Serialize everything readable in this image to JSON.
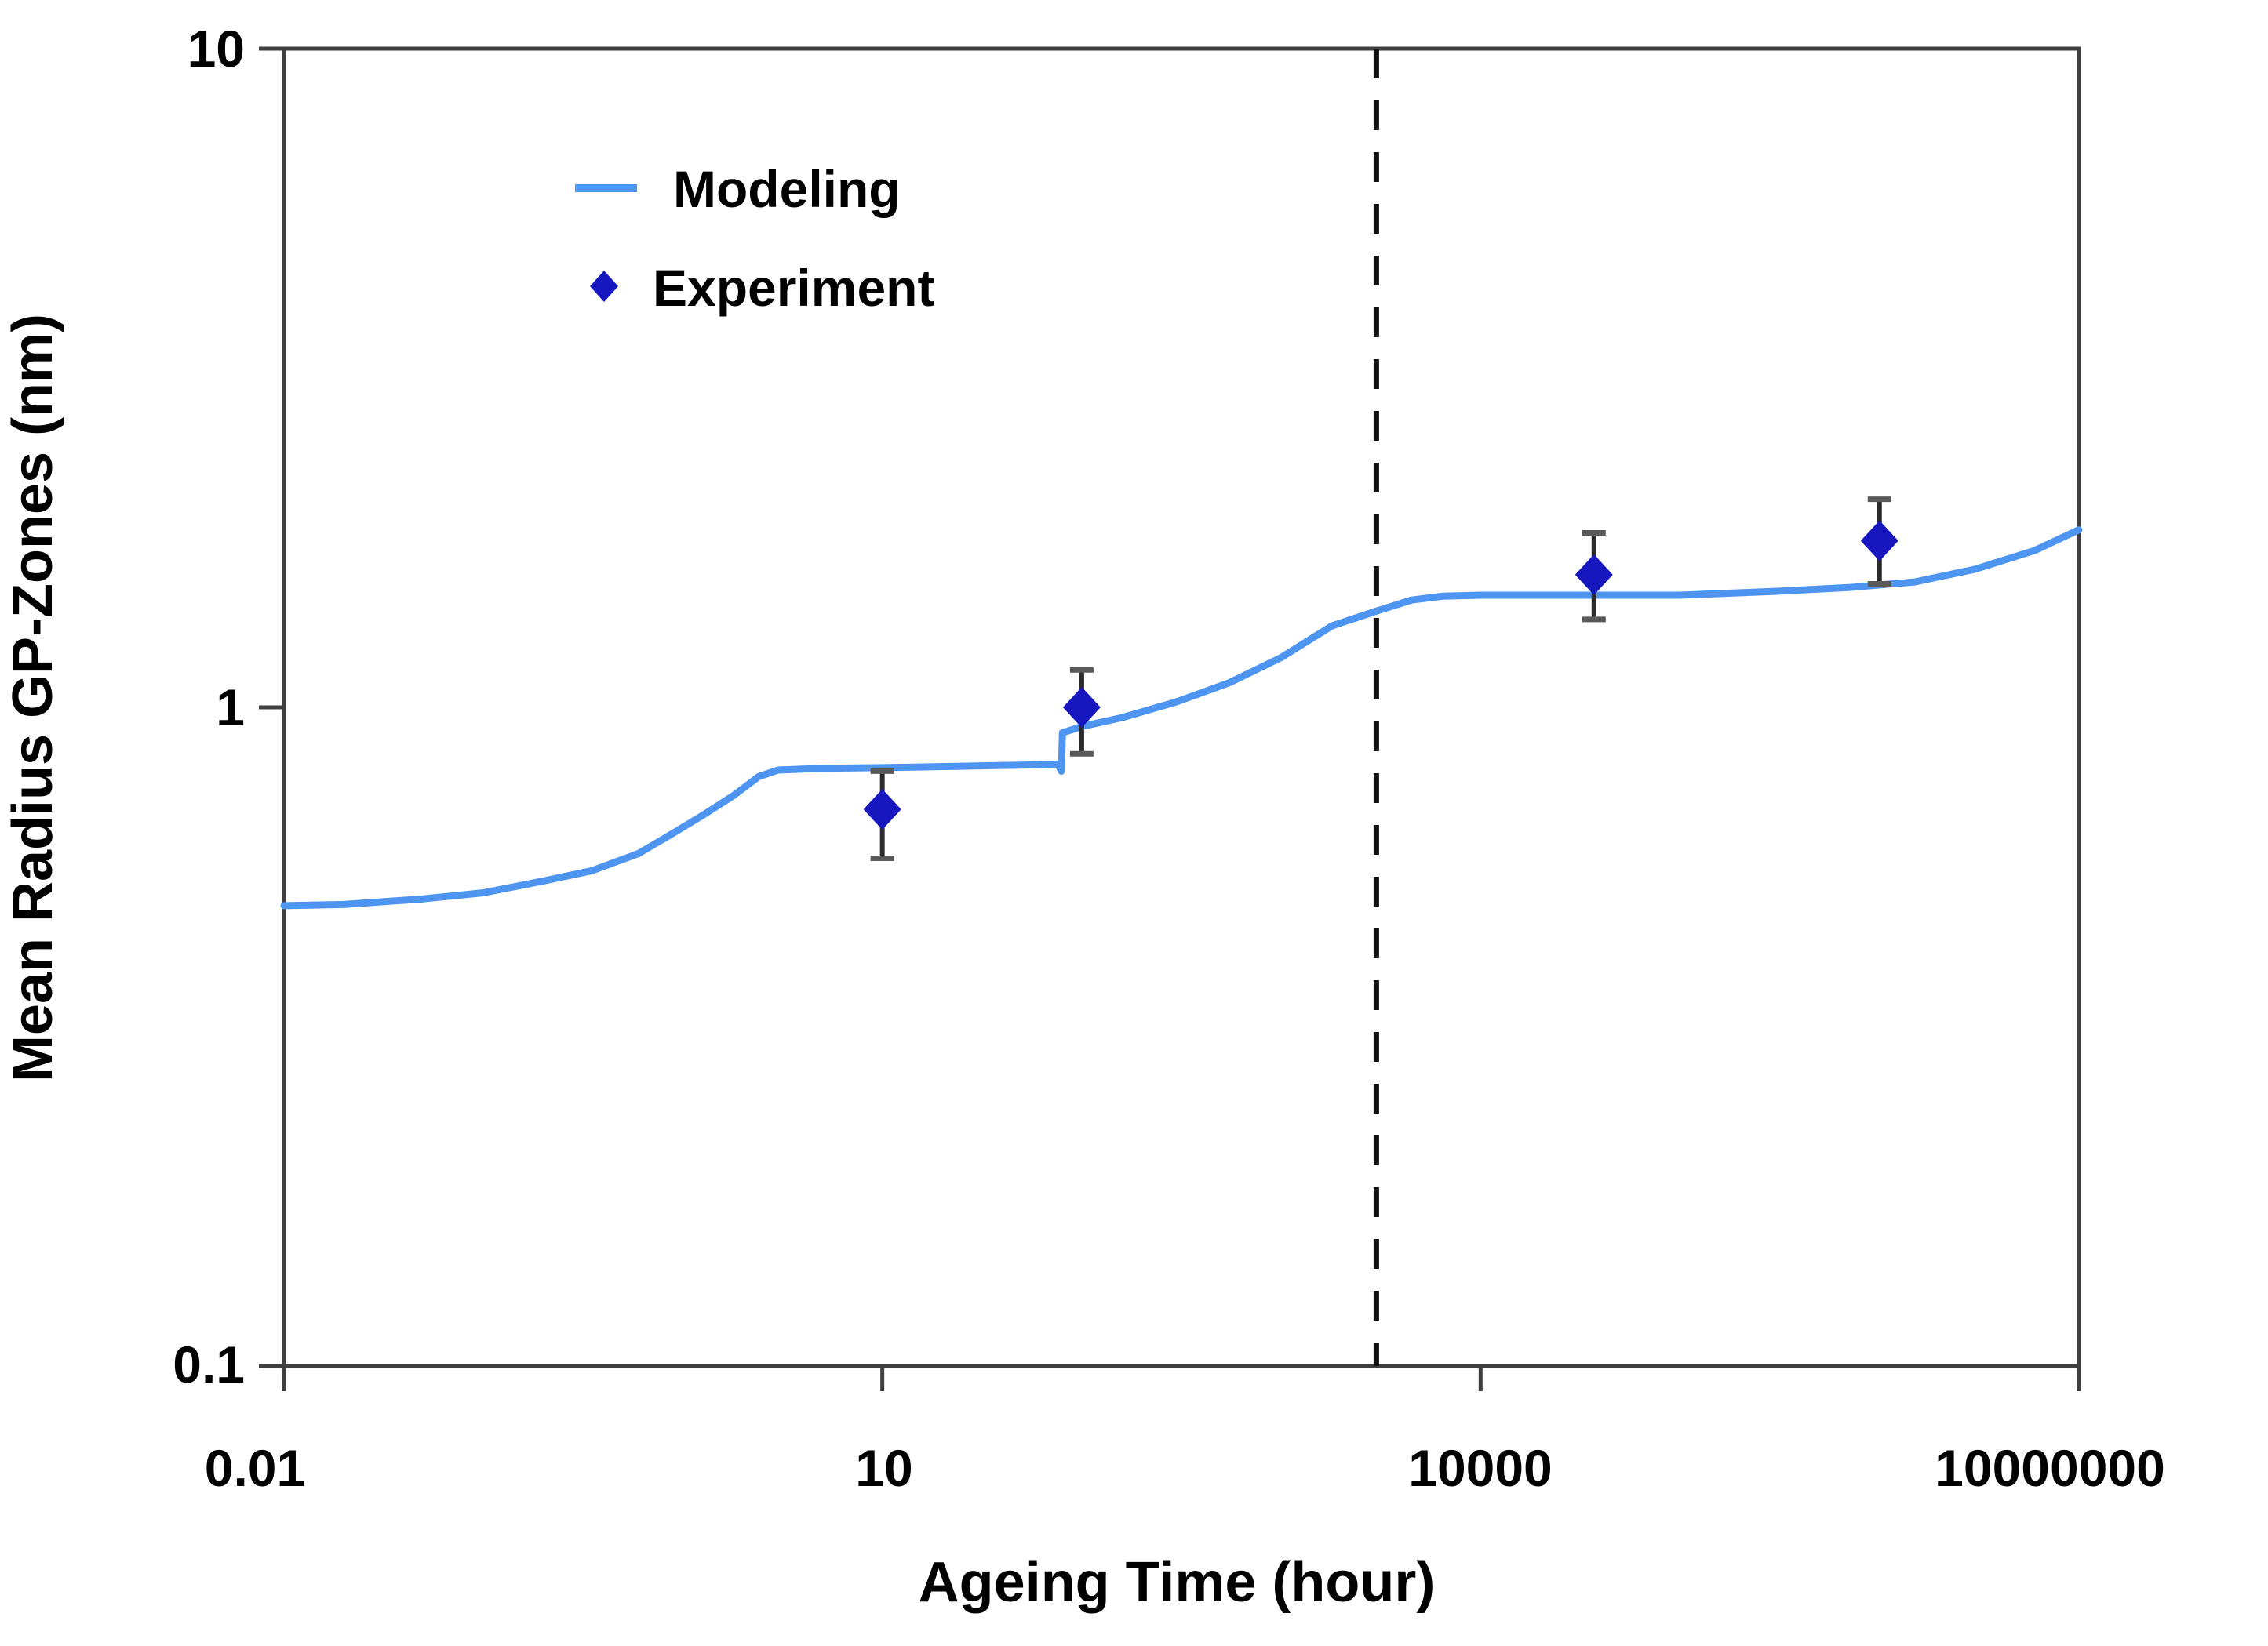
{
  "chart_data": {
    "type": "line",
    "title": "",
    "grid": false,
    "frame": true,
    "x_axis": {
      "label": "Ageing Time (hour)",
      "scale": "log",
      "range": [
        0.01,
        10000000
      ],
      "ticks": [
        {
          "v": 0.01,
          "label": "0.01"
        },
        {
          "v": 10,
          "label": "10"
        },
        {
          "v": 10000,
          "label": "10000"
        },
        {
          "v": 10000000,
          "label": "10000000"
        }
      ]
    },
    "y_axis": {
      "label": "Mean Radius GP-Zones (nm)",
      "scale": "log",
      "range": [
        0.1,
        10
      ],
      "ticks": [
        {
          "v": 0.1,
          "label": "0.1"
        },
        {
          "v": 1,
          "label": "1"
        },
        {
          "v": 10,
          "label": "10"
        }
      ]
    },
    "legend": {
      "position": "top-left-inside",
      "entries": [
        {
          "label": "Modeling",
          "marker": "line",
          "color": "#4D95F0"
        },
        {
          "label": "Experiment",
          "marker": "diamond",
          "color": "#1717C0"
        }
      ]
    },
    "series": [
      {
        "name": "Modeling",
        "type": "line",
        "color": "#4D95F0",
        "stroke_width": 9,
        "points": [
          [
            0.01,
            0.5
          ],
          [
            0.02,
            0.502
          ],
          [
            0.05,
            0.512
          ],
          [
            0.1,
            0.523
          ],
          [
            0.2,
            0.545
          ],
          [
            0.35,
            0.565
          ],
          [
            0.6,
            0.6
          ],
          [
            0.9,
            0.645
          ],
          [
            1.3,
            0.69
          ],
          [
            1.8,
            0.735
          ],
          [
            2.4,
            0.785
          ],
          [
            3,
            0.803
          ],
          [
            5,
            0.808
          ],
          [
            10,
            0.81
          ],
          [
            25,
            0.814
          ],
          [
            50,
            0.817
          ],
          [
            76,
            0.82
          ],
          [
            79,
            0.8
          ],
          [
            80,
            0.915
          ],
          [
            100,
            0.935
          ],
          [
            160,
            0.965
          ],
          [
            300,
            1.02
          ],
          [
            550,
            1.09
          ],
          [
            1000,
            1.19
          ],
          [
            1800,
            1.33
          ],
          [
            3000,
            1.4
          ],
          [
            4500,
            1.455
          ],
          [
            6500,
            1.475
          ],
          [
            10000,
            1.48
          ],
          [
            30000,
            1.48
          ],
          [
            100000,
            1.48
          ],
          [
            300000,
            1.5
          ],
          [
            700000,
            1.52
          ],
          [
            1500000,
            1.55
          ],
          [
            3000000,
            1.62
          ],
          [
            6000000,
            1.73
          ],
          [
            10000000,
            1.86
          ]
        ]
      },
      {
        "name": "Experiment",
        "type": "scatter",
        "marker": "diamond",
        "color": "#1717C0",
        "error_bar_color": "#2B2B2B",
        "error_cap_color": "#595959",
        "points": [
          {
            "t": 10,
            "r": 0.7,
            "lo": 0.59,
            "hi": 0.8
          },
          {
            "t": 100,
            "r": 1.0,
            "lo": 0.85,
            "hi": 1.14
          },
          {
            "t": 37000,
            "r": 1.59,
            "lo": 1.36,
            "hi": 1.84
          },
          {
            "t": 1000000,
            "r": 1.79,
            "lo": 1.54,
            "hi": 2.07
          }
        ]
      }
    ],
    "annotations": [
      {
        "type": "vline",
        "x": 3000,
        "line_style": "dashed",
        "color": "#111111"
      }
    ]
  },
  "colors": {
    "axis": "#3F3F3F",
    "text": "#000000",
    "background": "#FFFFFF",
    "modeling_line": "#4D95F0",
    "experiment_marker": "#1717C0"
  }
}
